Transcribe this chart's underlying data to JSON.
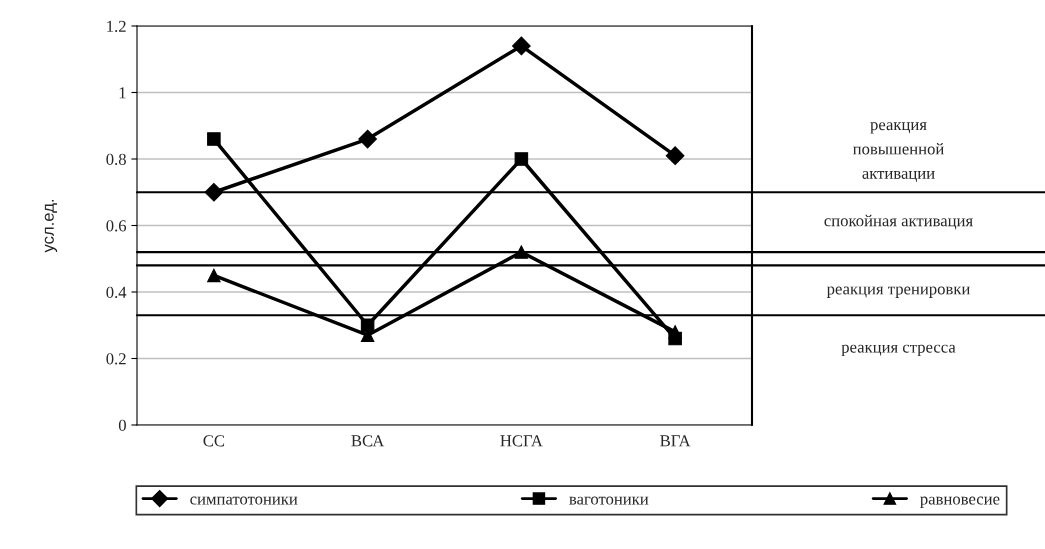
{
  "chart_data": {
    "type": "line",
    "ylabel": "усл.ед.",
    "categories": [
      "СС",
      "ВСА",
      "НСГА",
      "ВГА"
    ],
    "series": [
      {
        "name": "симпатотоники",
        "color": "#000000",
        "marker": "diamond",
        "values": [
          0.7,
          0.86,
          1.14,
          0.81
        ]
      },
      {
        "name": "ваготоники",
        "color": "#000000",
        "marker": "square",
        "values": [
          0.86,
          0.3,
          0.8,
          0.26
        ]
      },
      {
        "name": "равновесие",
        "color": "#000000",
        "marker": "triangle",
        "values": [
          0.45,
          0.27,
          0.52,
          0.28
        ]
      }
    ],
    "ref_lines": [
      {
        "axis": "y",
        "value": 0.7,
        "label": "реакция\nповышенной\nактивации"
      },
      {
        "axis": "y",
        "value": 0.52,
        "label": "спокойная активация"
      },
      {
        "axis": "y",
        "value": 0.48,
        "label": "реакция тренировки"
      },
      {
        "axis": "y",
        "value": 0.33,
        "label": "реакция стресса"
      }
    ],
    "ylim": [
      0,
      1.2
    ],
    "yticks": [
      0,
      0.2,
      0.4,
      0.6,
      0.8,
      1,
      1.2
    ],
    "grid": "y",
    "legend": "bottom",
    "line_style": "solid"
  }
}
